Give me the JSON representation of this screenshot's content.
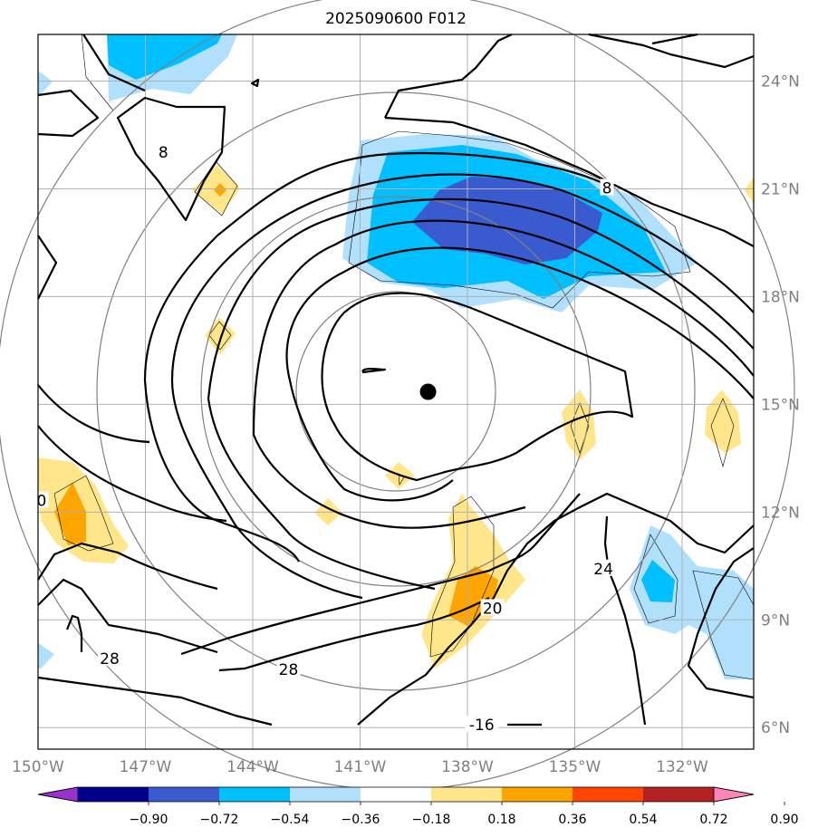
{
  "chart_data": {
    "type": "contour_map",
    "title": "2025090600 F012",
    "x_ticks": [
      "150°W",
      "147°W",
      "144°W",
      "141°W",
      "138°W",
      "135°W",
      "132°W"
    ],
    "y_ticks": [
      "24°N",
      "21°N",
      "18°N",
      "15°N",
      "12°N",
      "9°N",
      "6°N"
    ],
    "xlim": [
      -150,
      -130
    ],
    "ylim": [
      5.4,
      25.3
    ],
    "grid": true,
    "center_marker": {
      "lon": -139.1,
      "lat": 15.35
    },
    "colorbar": {
      "ticks": [
        "−0.90",
        "−0.72",
        "−0.54",
        "−0.36",
        "−0.18",
        "0.18",
        "0.36",
        "0.54",
        "0.72",
        "0.90"
      ],
      "colors": [
        "#9932cc",
        "#00008b",
        "#3a5bd0",
        "#00bfff",
        "#b0e0fb",
        "#ffffff",
        "#ffe68a",
        "#ffa500",
        "#ff4500",
        "#b22222",
        "#ff85b8"
      ],
      "extend": "both"
    },
    "contour_labels": [
      {
        "text": "8",
        "lon": -146.5,
        "lat": 22.0
      },
      {
        "text": "8",
        "lon": -134.1,
        "lat": 21.0
      },
      {
        "text": "0",
        "lon": -149.9,
        "lat": 12.3
      },
      {
        "text": "28",
        "lon": -148.0,
        "lat": 7.9
      },
      {
        "text": "28",
        "lon": -143.0,
        "lat": 7.6
      },
      {
        "text": "20",
        "lon": -137.3,
        "lat": 9.3
      },
      {
        "text": "24",
        "lon": -134.2,
        "lat": 10.4
      },
      {
        "text": "-16",
        "lon": -137.6,
        "lat": 6.05
      }
    ]
  }
}
